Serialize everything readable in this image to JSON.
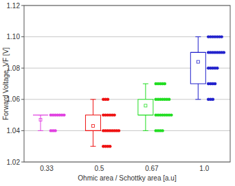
{
  "chart_data": {
    "type": "box",
    "x_label": "Ohmic area / Schottky area [a.u]",
    "y_label": "Forward Voltage, VF [V]",
    "categories": [
      "0.33",
      "0.5",
      "0.67",
      "1.0"
    ],
    "ylim": [
      1.02,
      1.12
    ],
    "yticks": [
      1.02,
      1.04,
      1.06,
      1.08,
      {
        "value": 1.1,
        "label": "1.10"
      },
      1.12
    ],
    "grid": true,
    "boxes": [
      {
        "color": "#e040e0",
        "min": 1.04,
        "q1": 1.05,
        "median": 1.05,
        "q3": 1.05,
        "max": 1.05,
        "mean": 1.047,
        "points": [
          1.05,
          1.05,
          1.05,
          1.05,
          1.05,
          1.05,
          1.05,
          1.04,
          1.04,
          1.04
        ]
      },
      {
        "color": "#ee1111",
        "min": 1.03,
        "q1": 1.04,
        "median": 1.04,
        "q3": 1.05,
        "max": 1.06,
        "mean": 1.043,
        "points": [
          1.06,
          1.06,
          1.06,
          1.05,
          1.05,
          1.05,
          1.05,
          1.05,
          1.05,
          1.04,
          1.04,
          1.04,
          1.04,
          1.04,
          1.04,
          1.04,
          1.04,
          1.03,
          1.03,
          1.03,
          1.03
        ]
      },
      {
        "color": "#22dd22",
        "min": 1.04,
        "q1": 1.05,
        "median": 1.05,
        "q3": 1.06,
        "max": 1.07,
        "mean": 1.056,
        "points": [
          1.07,
          1.07,
          1.07,
          1.07,
          1.07,
          1.06,
          1.06,
          1.06,
          1.06,
          1.06,
          1.06,
          1.06,
          1.05,
          1.05,
          1.05,
          1.05,
          1.05,
          1.05,
          1.05,
          1.05,
          1.04,
          1.04,
          1.04,
          1.04
        ]
      },
      {
        "color": "#2222cc",
        "min": 1.06,
        "q1": 1.07,
        "median": 1.09,
        "q3": 1.09,
        "max": 1.1,
        "mean": 1.084,
        "points": [
          1.1,
          1.1,
          1.1,
          1.1,
          1.1,
          1.1,
          1.1,
          1.09,
          1.09,
          1.09,
          1.09,
          1.09,
          1.09,
          1.09,
          1.09,
          1.08,
          1.08,
          1.08,
          1.08,
          1.08,
          1.07,
          1.07,
          1.07,
          1.07,
          1.06,
          1.06,
          1.06
        ]
      }
    ]
  }
}
